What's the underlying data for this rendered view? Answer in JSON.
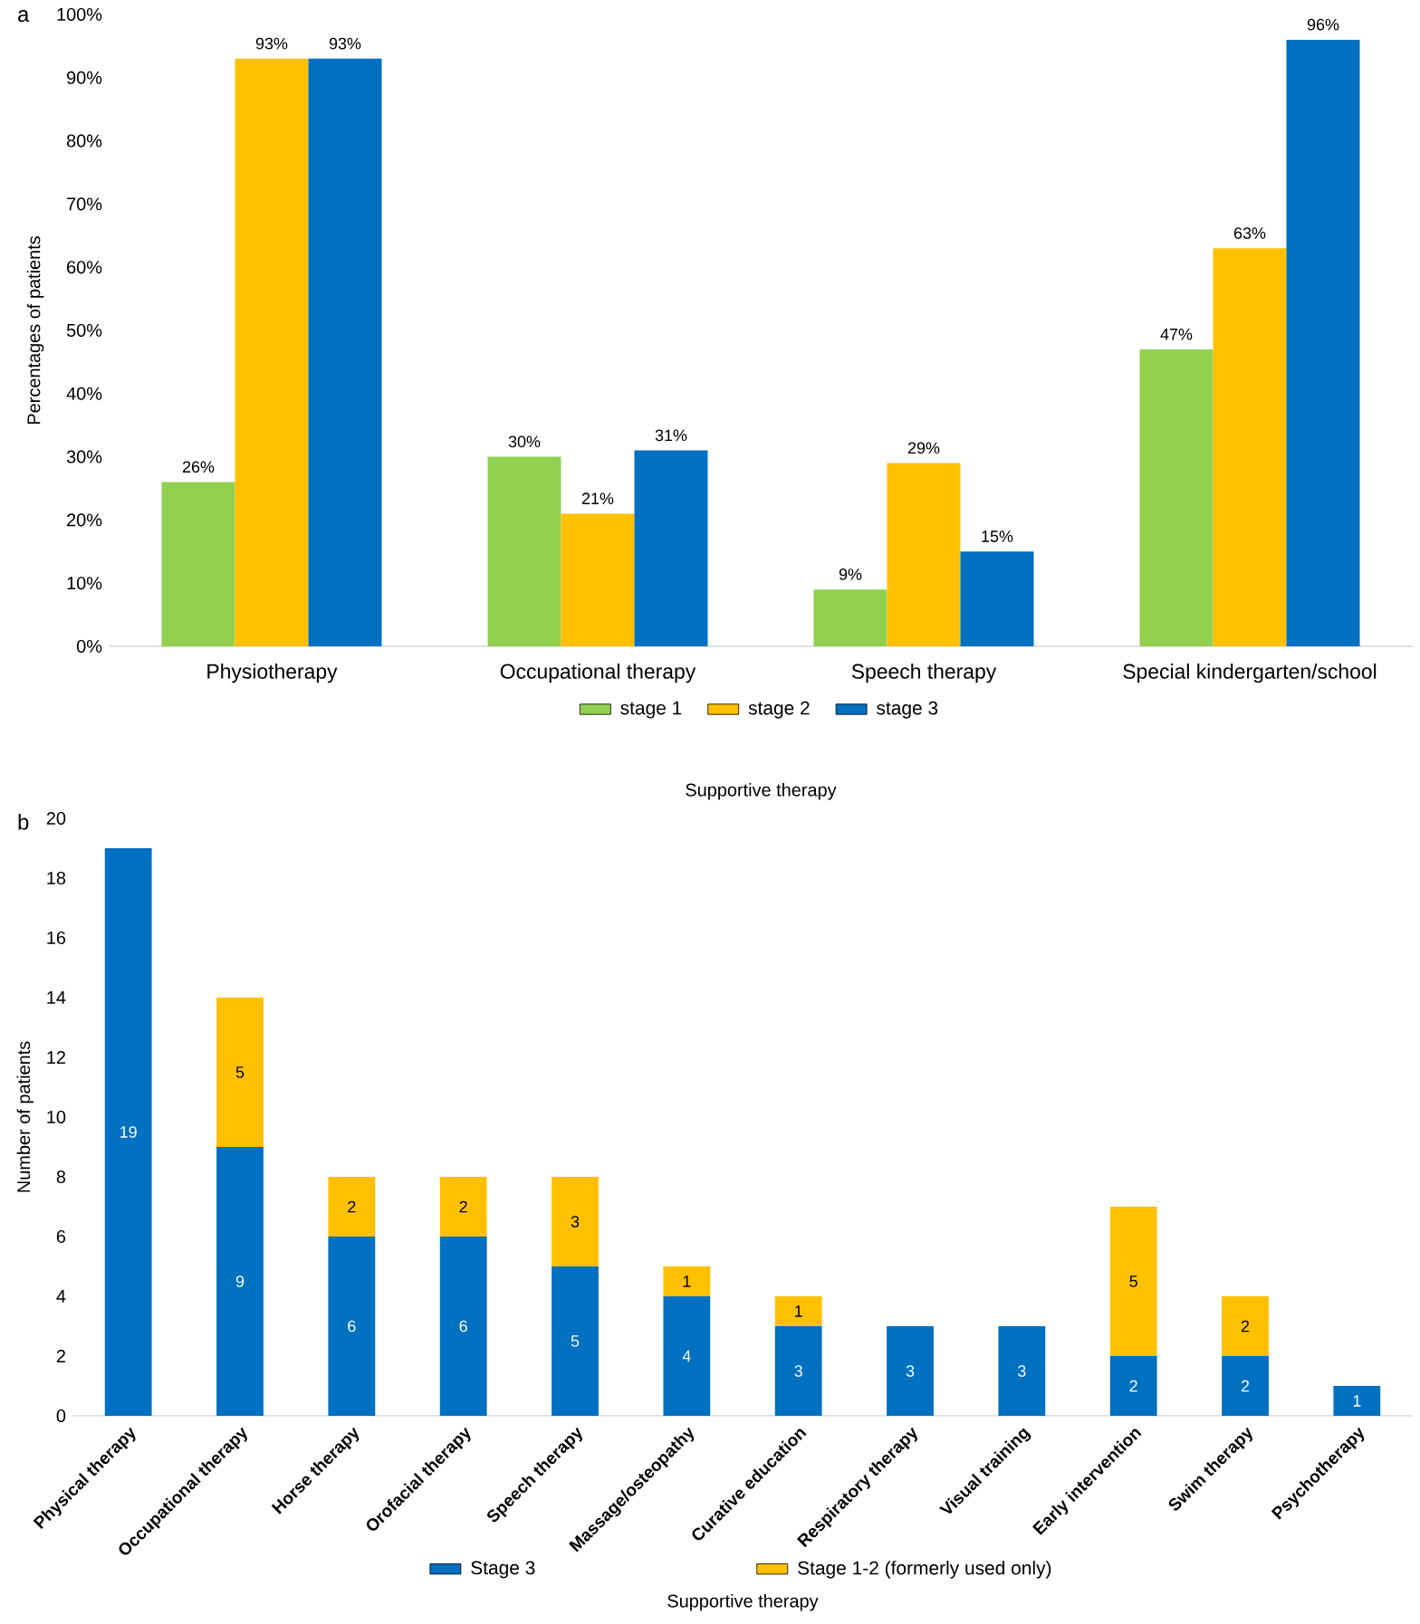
{
  "chart_data": [
    {
      "type": "bar",
      "title": "a",
      "xlabel": "Supportive therapy",
      "ylabel": "Percentages of patients",
      "categories": [
        "Physiotherapy",
        "Occupational therapy",
        "Speech therapy",
        "Special kindergarten/school"
      ],
      "series": [
        {
          "name": "stage 1",
          "color": "#92d050",
          "values": [
            26,
            30,
            9,
            47
          ],
          "value_labels": [
            "26%",
            "30%",
            "9%",
            "47%"
          ]
        },
        {
          "name": "stage 2",
          "color": "#ffc000",
          "values": [
            93,
            21,
            29,
            63
          ],
          "value_labels": [
            "93%",
            "21%",
            "29%",
            "63%"
          ]
        },
        {
          "name": "stage 3",
          "color": "#0070c0",
          "values": [
            93,
            31,
            15,
            96
          ],
          "value_labels": [
            "93%",
            "31%",
            "15%",
            "96%"
          ]
        }
      ],
      "ylim": [
        0,
        100
      ],
      "yticks": [
        {
          "value": 0,
          "label": "0%"
        },
        {
          "value": 10,
          "label": "10%"
        },
        {
          "value": 20,
          "label": "20%"
        },
        {
          "value": 30,
          "label": "30%"
        },
        {
          "value": 40,
          "label": "40%"
        },
        {
          "value": 50,
          "label": "50%"
        },
        {
          "value": 60,
          "label": "60%"
        },
        {
          "value": 70,
          "label": "70%"
        },
        {
          "value": 80,
          "label": "80%"
        },
        {
          "value": 90,
          "label": "90%"
        },
        {
          "value": 100,
          "label": "100%"
        }
      ],
      "legend": "bottom"
    },
    {
      "type": "bar",
      "title": "b",
      "xlabel": "Supportive therapy",
      "ylabel": "Number of patients",
      "stacked": true,
      "categories": [
        "Physical therapy",
        "Occupational therapy",
        "Horse therapy",
        "Orofacial therapy",
        "Speech therapy",
        "Massage/osteopathy",
        "Curative education",
        "Respiratory therapy",
        "Visual training",
        "Early intervention",
        "Swim therapy",
        "Psychotherapy"
      ],
      "series": [
        {
          "name": "Stage 3",
          "color": "#0070c0",
          "values": [
            19,
            9,
            6,
            6,
            5,
            4,
            3,
            3,
            3,
            2,
            2,
            1
          ]
        },
        {
          "name": "Stage 1-2 (formerly used only)",
          "color": "#ffc000",
          "values": [
            null,
            5,
            2,
            2,
            3,
            1,
            1,
            null,
            null,
            5,
            2,
            null
          ]
        }
      ],
      "ylim": [
        0,
        20
      ],
      "yticks": [
        0,
        2,
        4,
        6,
        8,
        10,
        12,
        14,
        16,
        18,
        20
      ],
      "data_labels": true,
      "legend": "bottom"
    }
  ]
}
